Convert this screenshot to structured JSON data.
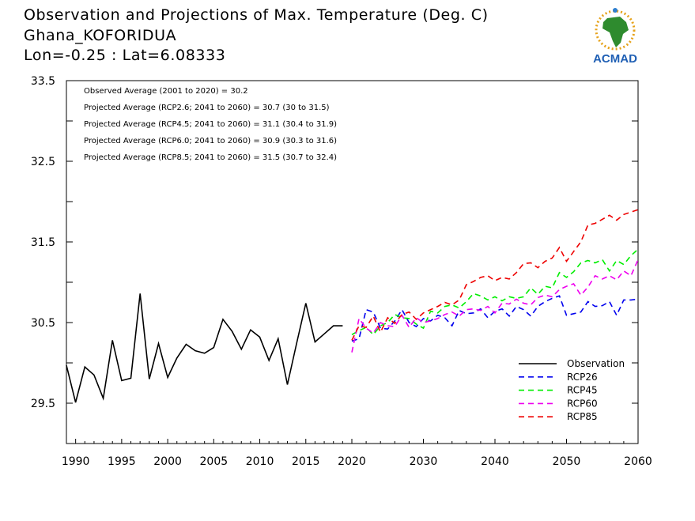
{
  "header": {
    "line1": "Observation and Projections of Max. Temperature (Deg. C)",
    "line2": "Ghana_KOFORIDUA",
    "line3": "Lon=-0.25 : Lat=6.08333"
  },
  "logo": {
    "text": "ACMAD",
    "icon": "africa-map-logo"
  },
  "annotations": [
    "Observed Average (2001 to 2020) = 30.2",
    "Projected Average (RCP2.6; 2041 to 2060) = 30.7 (30 to 31.5)",
    "Projected Average (RCP4.5; 2041 to 2060) = 31.1 (30.4 to 31.9)",
    "Projected Average (RCP6.0; 2041 to 2060) = 30.9 (30.3 to 31.6)",
    "Projected Average (RCP8.5; 2041 to 2060) = 31.5 (30.7 to 32.4)"
  ],
  "chart_data": {
    "type": "line",
    "xlim": [
      1989,
      2060
    ],
    "ylim": [
      29.0,
      33.5
    ],
    "x_axis_break_year": 2020,
    "x_ticks_left": [
      1990,
      1995,
      2000,
      2005,
      2010,
      2015,
      2020
    ],
    "x_ticks_right": [
      2030,
      2040,
      2050,
      2060
    ],
    "y_ticks": [
      29.5,
      30.5,
      31.5,
      32.5,
      33.5
    ],
    "y_tick_labels": [
      "29.5",
      "30.5",
      "31.5",
      "32.5",
      "33.5"
    ],
    "series": [
      {
        "name": "Observation",
        "color": "#000000",
        "dashed": false,
        "x": [
          1989,
          1990,
          1991,
          1992,
          1993,
          1994,
          1995,
          1996,
          1997,
          1998,
          1999,
          2000,
          2001,
          2002,
          2003,
          2004,
          2005,
          2006,
          2007,
          2008,
          2009,
          2010,
          2011,
          2012,
          2013,
          2014,
          2015,
          2016,
          2017,
          2018,
          2019
        ],
        "values": [
          29.97,
          29.51,
          29.95,
          29.85,
          29.56,
          30.28,
          29.78,
          29.81,
          30.86,
          29.8,
          30.24,
          29.82,
          30.06,
          30.23,
          30.15,
          30.12,
          30.19,
          30.54,
          30.39,
          30.17,
          30.41,
          30.32,
          30.03,
          30.3,
          29.73,
          30.24,
          30.74,
          30.26,
          30.36,
          30.46,
          30.46
        ]
      },
      {
        "name": "RCP26",
        "color": "#0000ee",
        "dashed": true,
        "x": [
          2020,
          2021,
          2022,
          2023,
          2024,
          2025,
          2026,
          2027,
          2028,
          2029,
          2030,
          2031,
          2032,
          2033,
          2034,
          2035,
          2036,
          2037,
          2038,
          2039,
          2040,
          2041,
          2042,
          2043,
          2044,
          2045,
          2046,
          2047,
          2048,
          2049,
          2050,
          2051,
          2052,
          2053,
          2054,
          2055,
          2056,
          2057,
          2058,
          2059,
          2060
        ],
        "values": [
          30.27,
          30.3,
          30.66,
          30.63,
          30.43,
          30.42,
          30.52,
          30.66,
          30.5,
          30.45,
          30.55,
          30.52,
          30.59,
          30.56,
          30.46,
          30.65,
          30.61,
          30.62,
          30.67,
          30.56,
          30.64,
          30.67,
          30.58,
          30.7,
          30.66,
          30.58,
          30.7,
          30.76,
          30.8,
          30.83,
          30.59,
          30.61,
          30.63,
          30.76,
          30.7,
          30.71,
          30.76,
          30.59,
          30.78,
          30.78,
          30.79
        ]
      },
      {
        "name": "RCP45",
        "color": "#00ee00",
        "dashed": true,
        "x": [
          2020,
          2021,
          2022,
          2023,
          2024,
          2025,
          2026,
          2027,
          2028,
          2029,
          2030,
          2031,
          2032,
          2033,
          2034,
          2035,
          2036,
          2037,
          2038,
          2039,
          2040,
          2041,
          2042,
          2043,
          2044,
          2045,
          2046,
          2047,
          2048,
          2049,
          2050,
          2051,
          2052,
          2053,
          2054,
          2055,
          2056,
          2057,
          2058,
          2059,
          2060
        ],
        "values": [
          30.35,
          30.4,
          30.44,
          30.35,
          30.46,
          30.5,
          30.6,
          30.56,
          30.55,
          30.48,
          30.43,
          30.64,
          30.62,
          30.7,
          30.72,
          30.68,
          30.76,
          30.86,
          30.83,
          30.78,
          30.82,
          30.77,
          30.82,
          30.8,
          30.82,
          30.93,
          30.85,
          30.95,
          30.93,
          31.12,
          31.06,
          31.13,
          31.24,
          31.27,
          31.24,
          31.28,
          31.14,
          31.27,
          31.22,
          31.33,
          31.41
        ]
      },
      {
        "name": "RCP60",
        "color": "#ee00ee",
        "dashed": true,
        "x": [
          2020,
          2021,
          2022,
          2023,
          2024,
          2025,
          2026,
          2027,
          2028,
          2029,
          2030,
          2031,
          2032,
          2033,
          2034,
          2035,
          2036,
          2037,
          2038,
          2039,
          2040,
          2041,
          2042,
          2043,
          2044,
          2045,
          2046,
          2047,
          2048,
          2049,
          2050,
          2051,
          2052,
          2053,
          2054,
          2055,
          2056,
          2057,
          2058,
          2059,
          2060
        ],
        "values": [
          30.13,
          30.55,
          30.43,
          30.37,
          30.5,
          30.46,
          30.45,
          30.59,
          30.44,
          30.56,
          30.5,
          30.52,
          30.55,
          30.6,
          30.63,
          30.58,
          30.66,
          30.67,
          30.65,
          30.7,
          30.62,
          30.74,
          30.73,
          30.79,
          30.74,
          30.72,
          30.81,
          30.84,
          30.82,
          30.91,
          30.95,
          30.98,
          30.84,
          30.94,
          31.08,
          31.04,
          31.08,
          31.03,
          31.14,
          31.08,
          31.28
        ]
      },
      {
        "name": "RCP85",
        "color": "#ee0000",
        "dashed": true,
        "x": [
          2020,
          2021,
          2022,
          2023,
          2024,
          2025,
          2026,
          2027,
          2028,
          2029,
          2030,
          2031,
          2032,
          2033,
          2034,
          2035,
          2036,
          2037,
          2038,
          2039,
          2040,
          2041,
          2042,
          2043,
          2044,
          2045,
          2046,
          2047,
          2048,
          2049,
          2050,
          2051,
          2052,
          2053,
          2054,
          2055,
          2056,
          2057,
          2058,
          2059,
          2060
        ],
        "values": [
          30.28,
          30.46,
          30.44,
          30.58,
          30.38,
          30.56,
          30.49,
          30.6,
          30.63,
          30.54,
          30.62,
          30.66,
          30.7,
          30.75,
          30.72,
          30.78,
          30.97,
          31.01,
          31.06,
          31.08,
          31.02,
          31.06,
          31.04,
          31.12,
          31.23,
          31.24,
          31.18,
          31.26,
          31.3,
          31.43,
          31.26,
          31.38,
          31.5,
          31.71,
          31.73,
          31.78,
          31.83,
          31.77,
          31.84,
          31.87,
          31.9
        ]
      }
    ],
    "legend": {
      "position": "bottom-right",
      "entries": [
        "Observation",
        "RCP26",
        "RCP45",
        "RCP60",
        "RCP85"
      ]
    }
  }
}
